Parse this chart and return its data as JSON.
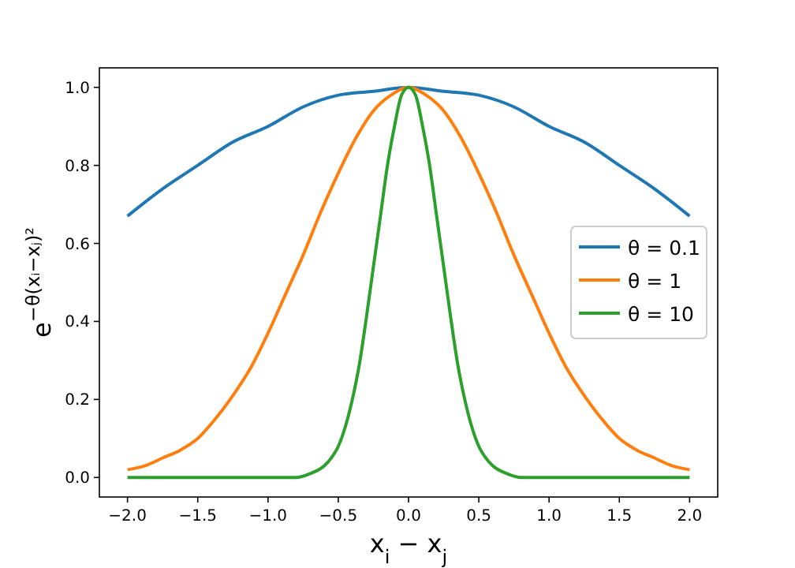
{
  "chart_data": {
    "type": "line",
    "xlabel": "x$_{i}$ − x$_{j}$",
    "ylabel": "e$^{−θ(xᵢ−xⱼ)²}$",
    "xlim": [
      -2.2,
      2.2
    ],
    "ylim": [
      -0.05,
      1.05
    ],
    "xticks": [
      {
        "value": -2,
        "label": "−2.0"
      },
      {
        "value": -1.5,
        "label": "−1.5"
      },
      {
        "value": -1,
        "label": "−1.0"
      },
      {
        "value": -0.5,
        "label": "−0.5"
      },
      {
        "value": 0,
        "label": "0.0"
      },
      {
        "value": 0.5,
        "label": "0.5"
      },
      {
        "value": 1,
        "label": "1.0"
      },
      {
        "value": 1.5,
        "label": "1.5"
      },
      {
        "value": 2,
        "label": "2.0"
      }
    ],
    "yticks": [
      {
        "value": 0,
        "label": "0.0"
      },
      {
        "value": 0.2,
        "label": "0.2"
      },
      {
        "value": 0.4,
        "label": "0.4"
      },
      {
        "value": 0.6,
        "label": "0.6"
      },
      {
        "value": 0.8,
        "label": "0.8"
      },
      {
        "value": 1,
        "label": "1.0"
      }
    ],
    "grid": false,
    "legend": "right",
    "marker": "none",
    "line_style": "solid",
    "series": [
      {
        "name": "θ = 0.1",
        "color": "#1f77b4",
        "x": [
          -2,
          -1.75,
          -1.5,
          -1.25,
          -1,
          -0.75,
          -0.5,
          -0.25,
          0,
          0.25,
          0.5,
          0.75,
          1,
          1.25,
          1.5,
          1.75,
          2
        ],
        "values": [
          0.67,
          0.74,
          0.8,
          0.86,
          0.9,
          0.95,
          0.98,
          0.99,
          1,
          0.99,
          0.98,
          0.95,
          0.9,
          0.86,
          0.8,
          0.74,
          0.67
        ]
      },
      {
        "name": "θ = 1",
        "color": "#ff7f0e",
        "x": [
          -2,
          -1.875,
          -1.75,
          -1.625,
          -1.5,
          -1.375,
          -1.25,
          -1.125,
          -1,
          -0.875,
          -0.75,
          -0.625,
          -0.5,
          -0.375,
          -0.25,
          -0.125,
          0,
          0.125,
          0.25,
          0.375,
          0.5,
          0.625,
          0.75,
          0.875,
          1,
          1.125,
          1.25,
          1.375,
          1.5,
          1.625,
          1.75,
          1.875,
          2
        ],
        "values": [
          0.02,
          0.03,
          0.05,
          0.07,
          0.1,
          0.15,
          0.21,
          0.28,
          0.37,
          0.47,
          0.57,
          0.68,
          0.78,
          0.87,
          0.94,
          0.98,
          1,
          0.98,
          0.94,
          0.87,
          0.78,
          0.68,
          0.57,
          0.47,
          0.37,
          0.28,
          0.21,
          0.15,
          0.1,
          0.07,
          0.05,
          0.03,
          0.02
        ]
      },
      {
        "name": "θ = 10",
        "color": "#2ca02c",
        "x": [
          -2,
          -1,
          -0.8,
          -0.7,
          -0.6,
          -0.55,
          -0.5,
          -0.45,
          -0.4,
          -0.35,
          -0.3,
          -0.25,
          -0.2,
          -0.15,
          -0.1,
          -0.05,
          0,
          0.05,
          0.1,
          0.15,
          0.2,
          0.25,
          0.3,
          0.35,
          0.4,
          0.45,
          0.5,
          0.55,
          0.6,
          0.7,
          0.8,
          1,
          2
        ],
        "values": [
          0,
          0,
          0,
          0.01,
          0.03,
          0.05,
          0.08,
          0.13,
          0.2,
          0.29,
          0.41,
          0.54,
          0.67,
          0.8,
          0.9,
          0.98,
          1,
          0.98,
          0.9,
          0.8,
          0.67,
          0.54,
          0.41,
          0.29,
          0.2,
          0.13,
          0.08,
          0.05,
          0.03,
          0.01,
          0,
          0,
          0
        ]
      }
    ]
  }
}
